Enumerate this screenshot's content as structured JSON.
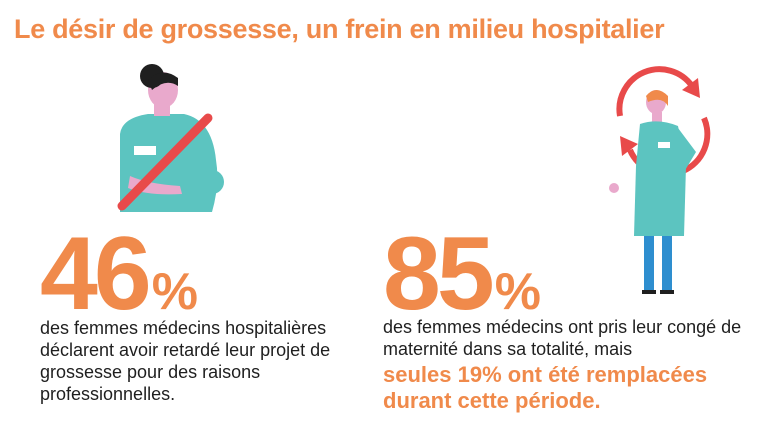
{
  "title": "Le désir de grossesse, un frein en milieu hospitalier",
  "stats": [
    {
      "number": "46",
      "unit": "%",
      "description": "des femmes médecins hospitalières déclarent avoir retardé leur projet de grossesse pour des raisons professionnelles."
    },
    {
      "number": "85",
      "unit": "%",
      "description": "des femmes médecins ont pris leur congé de maternité dans sa totalité, mais",
      "highlight": "seules 19% ont été remplacées durant cette période."
    }
  ],
  "colors": {
    "accent": "#f08a4b",
    "teal": "#5cc4c0",
    "skin": "#e9a9cc",
    "hair": "#1f1f1f",
    "red": "#e84a4a",
    "blue": "#2e8ecf"
  }
}
